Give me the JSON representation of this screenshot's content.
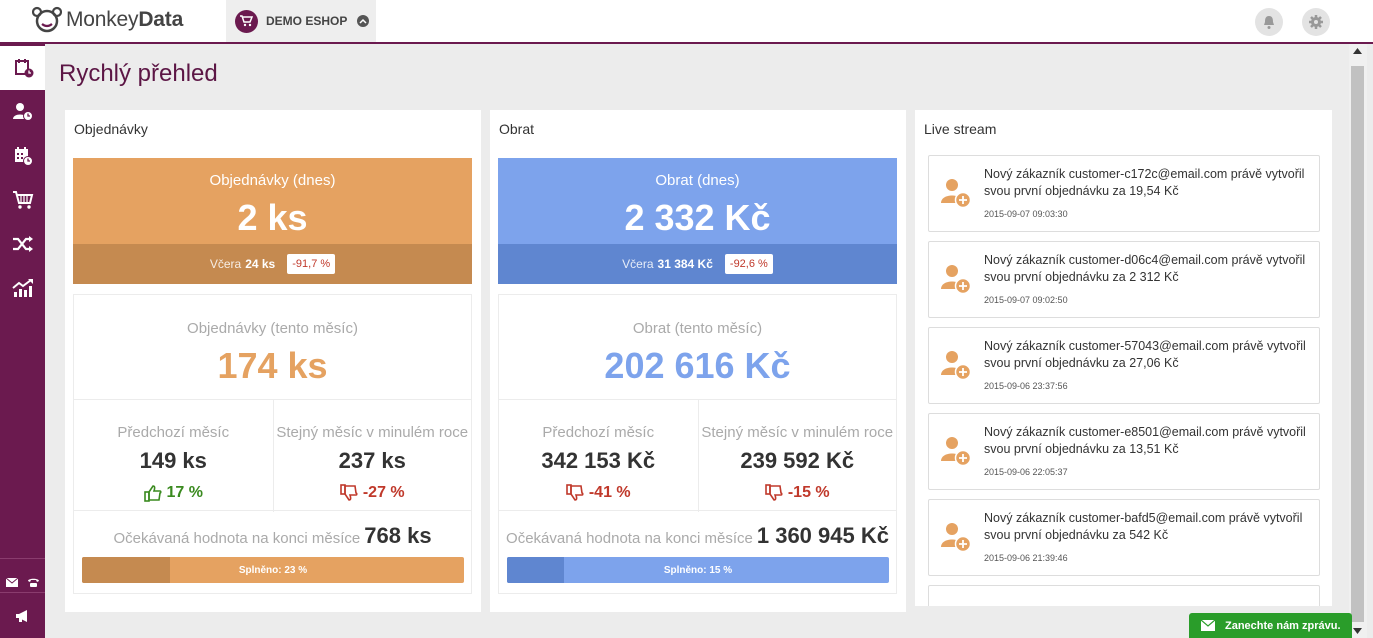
{
  "header": {
    "logo_text_a": "Monkey",
    "logo_text_b": "Data",
    "shop_name": "DEMO ESHOP"
  },
  "page_title": "Rychlý přehled",
  "orders": {
    "panel_title": "Objednávky",
    "today_label": "Objednávky (dnes)",
    "today_value": "2 ks",
    "yesterday_label": "Včera",
    "yesterday_value": "24 ks",
    "yesterday_change": "-91,7 %",
    "month_label": "Objednávky (tento měsíc)",
    "month_value": "174 ks",
    "prev_label": "Předchozí měsíc",
    "prev_value": "149 ks",
    "prev_change": "17 %",
    "prev_trend": "up",
    "yoy_label": "Stejný měsíc v minulém roce",
    "yoy_value": "237 ks",
    "yoy_change": "-27 %",
    "yoy_trend": "down",
    "expect_label": "Očekávaná hodnota na konci měsíce",
    "expect_value": "768 ks",
    "progress_label": "Splněno: 23 %",
    "progress_fraction": 0.23,
    "color_main": "#e5a261",
    "color_dark": "#c58a50"
  },
  "revenue": {
    "panel_title": "Obrat",
    "today_label": "Obrat (dnes)",
    "today_value": "2 332 Kč",
    "yesterday_label": "Včera",
    "yesterday_value": "31 384 Kč",
    "yesterday_change": "-92,6 %",
    "month_label": "Obrat (tento měsíc)",
    "month_value": "202 616 Kč",
    "prev_label": "Předchozí měsíc",
    "prev_value": "342 153 Kč",
    "prev_change": "-41 %",
    "prev_trend": "down",
    "yoy_label": "Stejný měsíc v minulém roce",
    "yoy_value": "239 592 Kč",
    "yoy_change": "-15 %",
    "yoy_trend": "down",
    "expect_label": "Očekávaná hodnota na konci měsíce",
    "expect_value": "1 360 945 Kč",
    "progress_label": "Splněno: 15 %",
    "progress_fraction": 0.15,
    "color_main": "#7da3ec",
    "color_dark": "#5f86d0"
  },
  "live_stream": {
    "panel_title": "Live stream",
    "items": [
      {
        "text": "Nový zákazník customer-c172c@email.com právě vytvořil svou první objednávku za 19,54 Kč",
        "time": "2015-09-07 09:03:30"
      },
      {
        "text": "Nový zákazník customer-d06c4@email.com právě vytvořil svou první objednávku za 2 312 Kč",
        "time": "2015-09-07 09:02:50"
      },
      {
        "text": "Nový zákazník customer-57043@email.com právě vytvořil svou první objednávku za 27,06 Kč",
        "time": "2015-09-06 23:37:56"
      },
      {
        "text": "Nový zákazník customer-e8501@email.com právě vytvořil svou první objednávku za 13,51 Kč",
        "time": "2015-09-06 22:05:37"
      },
      {
        "text": "Nový zákazník customer-bafd5@email.com právě vytvořil svou první objednávku za 542 Kč",
        "time": "2015-09-06 21:39:46"
      }
    ]
  },
  "message_button": "Zanechte nám zprávu.",
  "sidebar": {
    "items": [
      "dashboard-icon",
      "customers-icon",
      "calendar-icon",
      "cart-icon",
      "shuffle-icon",
      "growth-chart-icon"
    ],
    "bottom": [
      "mail-icon",
      "phone-icon",
      "megaphone-icon"
    ]
  }
}
